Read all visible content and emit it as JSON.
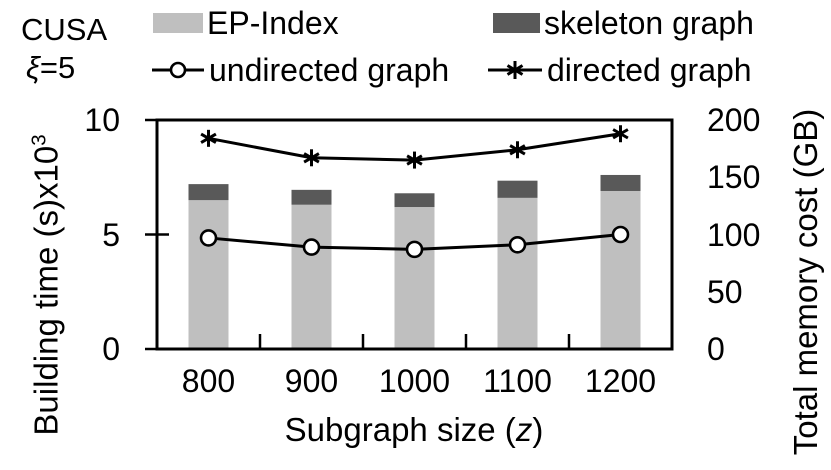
{
  "corner": {
    "dataset_label": "CUSA",
    "param_symbol": "ξ",
    "param_rest": "=5"
  },
  "legend": {
    "position": "top",
    "items": [
      {
        "label": "EP-Index",
        "swatch": "bar",
        "color": "#bfbfbf"
      },
      {
        "label": "skeleton graph",
        "swatch": "bar",
        "color": "#595959"
      },
      {
        "label": "undirected graph",
        "swatch": "line-circle",
        "color": "#000000"
      },
      {
        "label": "directed graph",
        "swatch": "line-asterisk",
        "color": "#000000"
      }
    ]
  },
  "chart_data": {
    "type": "bar",
    "subtype": "stacked bars with dual-axis marker lines",
    "categories": [
      800,
      900,
      1000,
      1100,
      1200
    ],
    "bar_series": [
      {
        "name": "EP-Index",
        "axis": "left",
        "color": "#bfbfbf",
        "values": [
          6.5,
          6.3,
          6.2,
          6.6,
          6.9
        ]
      },
      {
        "name": "skeleton graph",
        "axis": "left",
        "color": "#595959",
        "values": [
          0.7,
          0.65,
          0.6,
          0.75,
          0.7
        ]
      }
    ],
    "line_series": [
      {
        "name": "undirected graph",
        "axis": "right",
        "marker": "circle",
        "color": "#000000",
        "values": [
          97,
          89,
          87,
          91,
          100
        ]
      },
      {
        "name": "directed graph",
        "axis": "right",
        "marker": "asterisk",
        "color": "#000000",
        "values": [
          184,
          167,
          165,
          174,
          188
        ]
      }
    ],
    "left_axis": {
      "label_text": "Building time (s)x10",
      "label_sup": "3",
      "ticks": [
        0,
        5,
        10
      ],
      "range": [
        0,
        10
      ]
    },
    "right_axis": {
      "label": "Total memory cost (GB)",
      "ticks": [
        0,
        50,
        100,
        150,
        200
      ],
      "range": [
        0,
        200
      ]
    },
    "x_axis": {
      "label_pre": "Subgraph size (",
      "label_var": "z",
      "label_post": ")"
    },
    "grid": false,
    "legend_position": "top"
  }
}
